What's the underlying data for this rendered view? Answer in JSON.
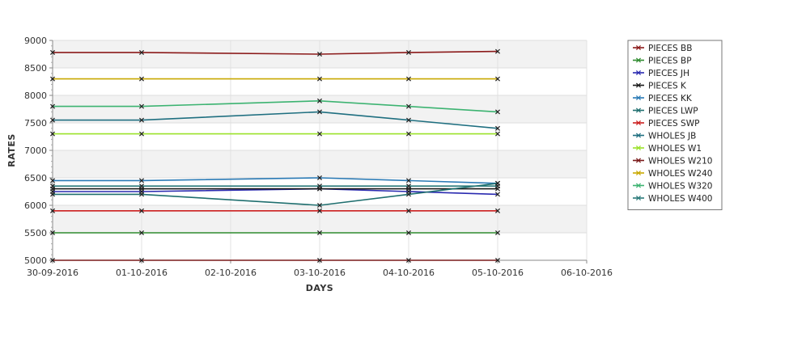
{
  "chart_data": {
    "type": "line",
    "title": "",
    "xlabel": "DAYS",
    "ylabel": "RATES",
    "x_ticks": [
      "30-09-2016",
      "01-10-2016",
      "02-10-2016",
      "03-10-2016",
      "04-10-2016",
      "05-10-2016",
      "06-10-2016"
    ],
    "x_points": [
      "30-09-2016",
      "01-10-2016",
      "03-10-2016",
      "04-10-2016",
      "05-10-2016"
    ],
    "ylim": [
      5000,
      9000
    ],
    "y_ticks": [
      5000,
      5500,
      6000,
      6500,
      7000,
      7500,
      8000,
      8500,
      9000
    ],
    "grid": true,
    "legend_position": "right",
    "series": [
      {
        "name": "PIECES BB",
        "color": "#8b1a1a",
        "values": [
          8780,
          8780,
          8750,
          8780,
          8800
        ]
      },
      {
        "name": "PIECES BP",
        "color": "#2e8b2e",
        "values": [
          5500,
          5500,
          5500,
          5500,
          5500
        ]
      },
      {
        "name": "PIECES JH",
        "color": "#2a2ab0",
        "values": [
          6250,
          6250,
          6300,
          6250,
          6200
        ]
      },
      {
        "name": "PIECES K",
        "color": "#1a1a1a",
        "values": [
          6300,
          6300,
          6300,
          6300,
          6300
        ]
      },
      {
        "name": "PIECES KK",
        "color": "#2a7ab5",
        "values": [
          6450,
          6450,
          6500,
          6450,
          6400
        ]
      },
      {
        "name": "PIECES LWP",
        "color": "#1f6f6f",
        "values": [
          6200,
          6200,
          6000,
          6200,
          6400
        ]
      },
      {
        "name": "PIECES SWP",
        "color": "#cc2020",
        "values": [
          5900,
          5900,
          5900,
          5900,
          5900
        ]
      },
      {
        "name": "WHOLES JB",
        "color": "#1f6f80",
        "values": [
          7550,
          7550,
          7700,
          7550,
          7400
        ]
      },
      {
        "name": "WHOLES W1",
        "color": "#9be22a",
        "values": [
          7300,
          7300,
          7300,
          7300,
          7300
        ]
      },
      {
        "name": "WHOLES W210",
        "color": "#7a1a1a",
        "values": [
          5000,
          5000,
          5000,
          5000,
          5000
        ]
      },
      {
        "name": "WHOLES W240",
        "color": "#c8a800",
        "values": [
          8300,
          8300,
          8300,
          8300,
          8300
        ]
      },
      {
        "name": "WHOLES W320",
        "color": "#3cb371",
        "values": [
          7800,
          7800,
          7900,
          7800,
          7700
        ]
      },
      {
        "name": "WHOLES W400",
        "color": "#2a7a7a",
        "values": [
          6350,
          6350,
          6350,
          6350,
          6350
        ]
      }
    ]
  }
}
